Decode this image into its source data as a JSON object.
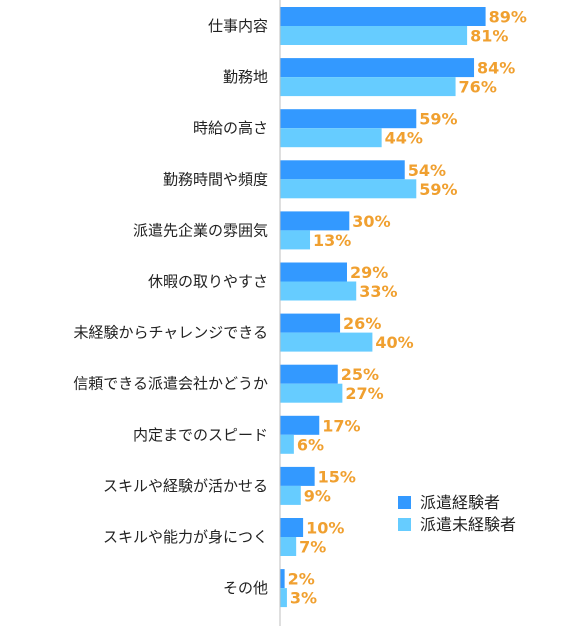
{
  "chart_data": {
    "type": "bar",
    "orientation": "horizontal",
    "categories": [
      "仕事内容",
      "勤務地",
      "時給の高さ",
      "勤務時間や頻度",
      "派遣先企業の雰囲気",
      "休暇の取りやすさ",
      "未経験からチャレンジできる",
      "信頼できる派遣会社かどうか",
      "内定までのスピード",
      "スキルや経験が活かせる",
      "スキルや能力が身につく",
      "その他"
    ],
    "series": [
      {
        "name": "派遣経験者",
        "color": "#3399ff",
        "values": [
          89,
          84,
          59,
          54,
          30,
          29,
          26,
          25,
          17,
          15,
          10,
          2
        ]
      },
      {
        "name": "派遣未経験者",
        "color": "#66ccff",
        "values": [
          81,
          76,
          44,
          59,
          13,
          33,
          40,
          27,
          6,
          9,
          7,
          3
        ]
      }
    ],
    "value_suffix": "%",
    "label_color": "#f0a030",
    "xlim": [
      0,
      100
    ],
    "grid": false,
    "legend_position": "right"
  }
}
